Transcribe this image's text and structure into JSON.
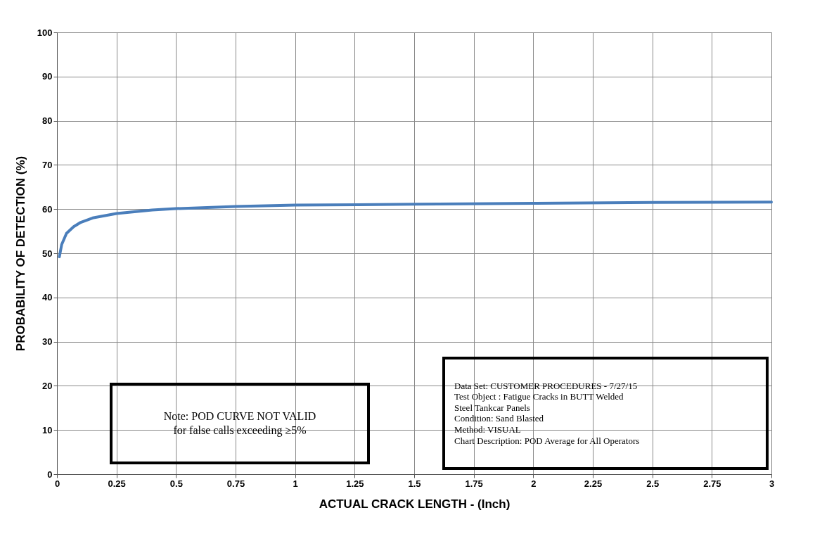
{
  "chart_data": {
    "type": "line",
    "xlabel": "ACTUAL CRACK LENGTH - (Inch)",
    "ylabel": "PROBABILITY OF DETECTION (%)",
    "x": [
      0.01,
      0.02,
      0.04,
      0.07,
      0.1,
      0.15,
      0.25,
      0.4,
      0.5,
      0.75,
      1,
      1.5,
      2,
      2.5,
      3
    ],
    "series": [
      {
        "color": "#4a7ebb",
        "values": [
          49.2,
          52,
          54.5,
          56,
          57,
          58,
          59,
          59.8,
          60.1,
          60.6,
          60.9,
          61.1,
          61.3,
          61.5,
          61.6
        ]
      }
    ],
    "xlim": [
      0,
      3
    ],
    "xticks": [
      0,
      0.25,
      0.5,
      0.75,
      1,
      1.25,
      1.5,
      1.75,
      2,
      2.25,
      2.5,
      2.75,
      3
    ],
    "ylim": [
      0,
      100
    ],
    "yticks": [
      0,
      10,
      20,
      30,
      40,
      50,
      60,
      70,
      80,
      90,
      100
    ],
    "grid": true,
    "marker": "none",
    "line_style": "solid",
    "annotations": [
      "Note: POD CURVE NOT VALID\nfor false calls exceeding ≥5%",
      "Data Set:          CUSTOMER PROCEDURES - 7/27/15\nTest Object :     Fatigue Cracks in BUTT Welded\n                          Steel Tankcar Panels\nCondition:          Sand Blasted\nMethod:              VISUAL\nChart Description: POD  Average  for All Operators"
    ]
  }
}
